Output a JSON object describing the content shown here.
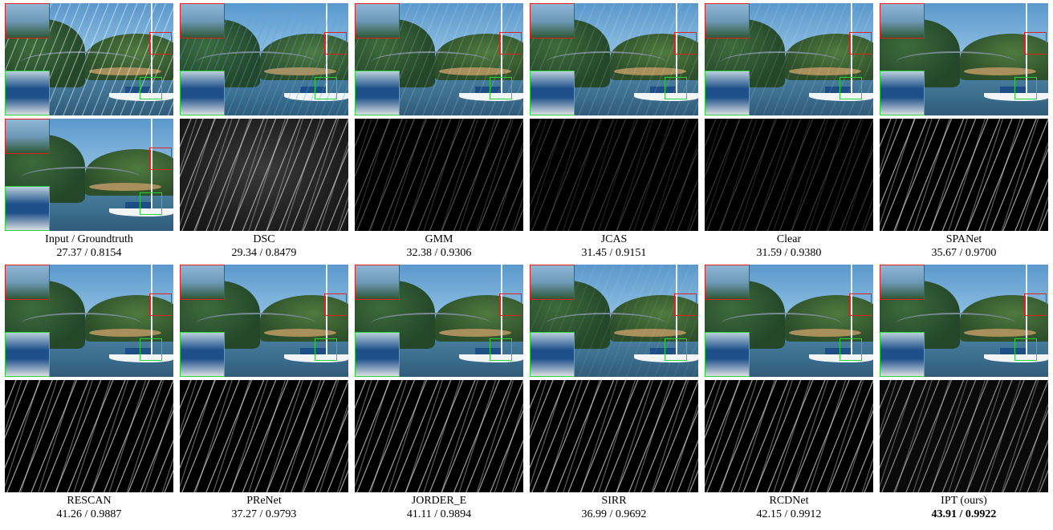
{
  "top_row": {
    "captions": [
      {
        "label": "Input / Groundtruth",
        "metric": "27.37 / 0.8154"
      },
      {
        "label": "DSC",
        "metric": "29.34 / 0.8479"
      },
      {
        "label": "GMM",
        "metric": "32.38 / 0.9306"
      },
      {
        "label": "JCAS",
        "metric": "31.45 / 0.9151"
      },
      {
        "label": "Clear",
        "metric": "31.59 / 0.9380"
      },
      {
        "label": "SPANet",
        "metric": "35.67 / 0.9700"
      }
    ]
  },
  "bottom_row": {
    "captions": [
      {
        "label": "RESCAN",
        "metric": "41.26 / 0.9887"
      },
      {
        "label": "PReNet",
        "metric": "37.27 / 0.9793"
      },
      {
        "label": "JORDER_E",
        "metric": "41.11 / 0.9894"
      },
      {
        "label": "SIRR",
        "metric": "36.99 / 0.9692"
      },
      {
        "label": "RCDNet",
        "metric": "42.15 / 0.9912"
      },
      {
        "label": "IPT (ours)",
        "metric": "43.91 / 0.9922"
      }
    ]
  },
  "colors": {
    "zoom_box_red": "#e0201c",
    "zoom_box_green": "#29d13a"
  }
}
